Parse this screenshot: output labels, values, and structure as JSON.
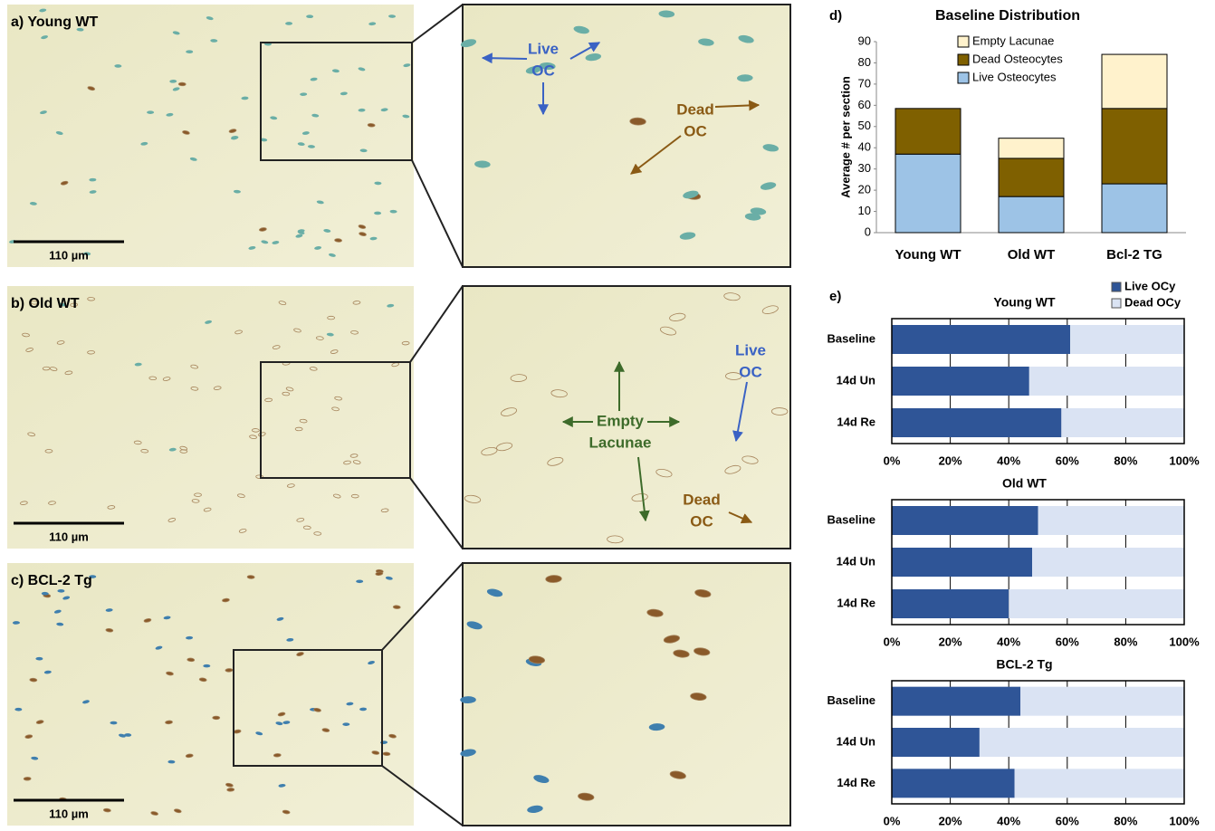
{
  "panels": [
    {
      "label": "a) Young WT",
      "scale": "110 µm"
    },
    {
      "label": "b) Old WT",
      "scale": "110 µm"
    },
    {
      "label": "c) BCL-2 Tg",
      "scale": "110 µm"
    }
  ],
  "annotations": [
    {
      "lines": [
        "Live",
        "OC"
      ],
      "color": "#3a62c4"
    },
    {
      "lines": [
        "Dead",
        "OC"
      ],
      "color": "#8a5a14"
    },
    {
      "lines": [
        "Empty",
        "Lacunae"
      ],
      "color": "#3d6b2a"
    },
    {
      "lines": [
        "Live",
        "OC"
      ],
      "color": "#3a62c4"
    },
    {
      "lines": [
        "Dead",
        "OC"
      ],
      "color": "#8a5a14"
    }
  ],
  "panel_labels": {
    "d": "d)",
    "e": "e)"
  },
  "chart_data": [
    {
      "type": "bar",
      "title": "Baseline Distribution",
      "ylabel": "Average # per section",
      "categories": [
        "Young WT",
        "Old WT",
        "Bcl-2 TG"
      ],
      "series": [
        {
          "name": "Live Osteocytes",
          "color": "#9dc3e6",
          "values": [
            37,
            17,
            23
          ]
        },
        {
          "name": "Dead Osteocytes",
          "color": "#7f6000",
          "values": [
            21.5,
            18,
            35.5
          ]
        },
        {
          "name": "Empty Lacunae",
          "color": "#fff2cc",
          "values": [
            0,
            9.5,
            25.5
          ]
        }
      ],
      "ylim": [
        0,
        90
      ],
      "yticks": [
        0,
        10,
        20,
        30,
        40,
        50,
        60,
        70,
        80,
        90
      ],
      "legend": "upper left",
      "grid": false
    },
    {
      "type": "hbar",
      "title": "Young WT",
      "categories": [
        "Baseline",
        "14d Un",
        "14d Re"
      ],
      "series": [
        {
          "name": "Live OCy",
          "color": "#2f5597",
          "values": [
            61,
            47,
            58
          ]
        },
        {
          "name": "Dead OCy",
          "color": "#dae3f3",
          "values": [
            39,
            53,
            42
          ]
        }
      ],
      "xlim": [
        0,
        100
      ],
      "xticks": [
        {
          "value": 0,
          "label": "0%"
        },
        {
          "value": 20,
          "label": "20%"
        },
        {
          "value": 40,
          "label": "40%"
        },
        {
          "value": 60,
          "label": "60%"
        },
        {
          "value": 80,
          "label": "80%"
        },
        {
          "value": 100,
          "label": "100%"
        }
      ],
      "legend": "top right",
      "grid": true
    },
    {
      "type": "hbar",
      "title": "Old WT",
      "categories": [
        "Baseline",
        "14d Un",
        "14d Re"
      ],
      "series": [
        {
          "color": "#2f5597",
          "values": [
            50,
            48,
            40
          ]
        },
        {
          "color": "#dae3f3",
          "values": [
            50,
            52,
            60
          ]
        }
      ],
      "xlim": [
        0,
        100
      ],
      "xticks": [
        {
          "value": 0,
          "label": "0%"
        },
        {
          "value": 20,
          "label": "20%"
        },
        {
          "value": 40,
          "label": "40%"
        },
        {
          "value": 60,
          "label": "60%"
        },
        {
          "value": 80,
          "label": "80%"
        },
        {
          "value": 100,
          "label": "100%"
        }
      ],
      "grid": true
    },
    {
      "type": "hbar",
      "title": "BCL-2 Tg",
      "categories": [
        "Baseline",
        "14d Un",
        "14d Re"
      ],
      "series": [
        {
          "color": "#2f5597",
          "values": [
            44,
            30,
            42
          ]
        },
        {
          "color": "#dae3f3",
          "values": [
            56,
            70,
            58
          ]
        }
      ],
      "xlim": [
        0,
        100
      ],
      "xticks": [
        {
          "value": 0,
          "label": "0%"
        },
        {
          "value": 20,
          "label": "20%"
        },
        {
          "value": 40,
          "label": "40%"
        },
        {
          "value": 60,
          "label": "60%"
        },
        {
          "value": 80,
          "label": "80%"
        },
        {
          "value": 100,
          "label": "100%"
        }
      ],
      "grid": true
    }
  ]
}
